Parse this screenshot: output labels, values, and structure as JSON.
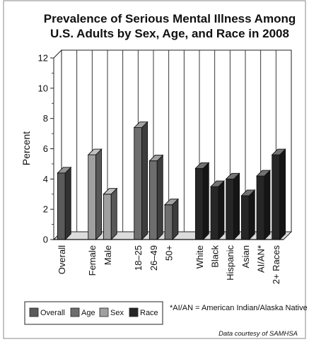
{
  "chart_data": {
    "type": "bar",
    "title": "Prevalence of Serious Mental Illness Among U.S. Adults by Sex, Age, and Race in 2008",
    "title_lines": [
      "Prevalence of Serious Mental Illness Among",
      "U.S. Adults by Sex, Age, and Race in 2008"
    ],
    "ylabel": "Percent",
    "xlabel": "",
    "ylim": [
      0,
      12
    ],
    "yticks": [
      "0",
      "2",
      "4",
      "6",
      "8",
      "10",
      "12"
    ],
    "grid": "vertical separators",
    "legend_position": "bottom-left",
    "categories": [
      "Overall",
      "Female",
      "Male",
      "18–25",
      "26–49",
      "50+",
      "White",
      "Black",
      "Hispanic",
      "Asian",
      "AI/AN*",
      "2+ Races"
    ],
    "values": [
      4.4,
      5.6,
      3.0,
      7.4,
      5.2,
      2.3,
      4.7,
      3.5,
      4.0,
      2.9,
      4.2,
      5.6
    ],
    "groups": [
      "Overall",
      "Sex",
      "Sex",
      "Age",
      "Age",
      "Age",
      "Race",
      "Race",
      "Race",
      "Race",
      "Race",
      "Race"
    ],
    "legend": [
      "Overall",
      "Age",
      "Sex",
      "Race"
    ],
    "colors": {
      "Overall": "#5b5b5b",
      "Age": "#6e6e6e",
      "Sex": "#a0a0a0",
      "Race": "#262626"
    },
    "footnote": "*AI/AN = American Indian/Alaska Native",
    "credit": "Data courtesy of SAMHSA"
  }
}
